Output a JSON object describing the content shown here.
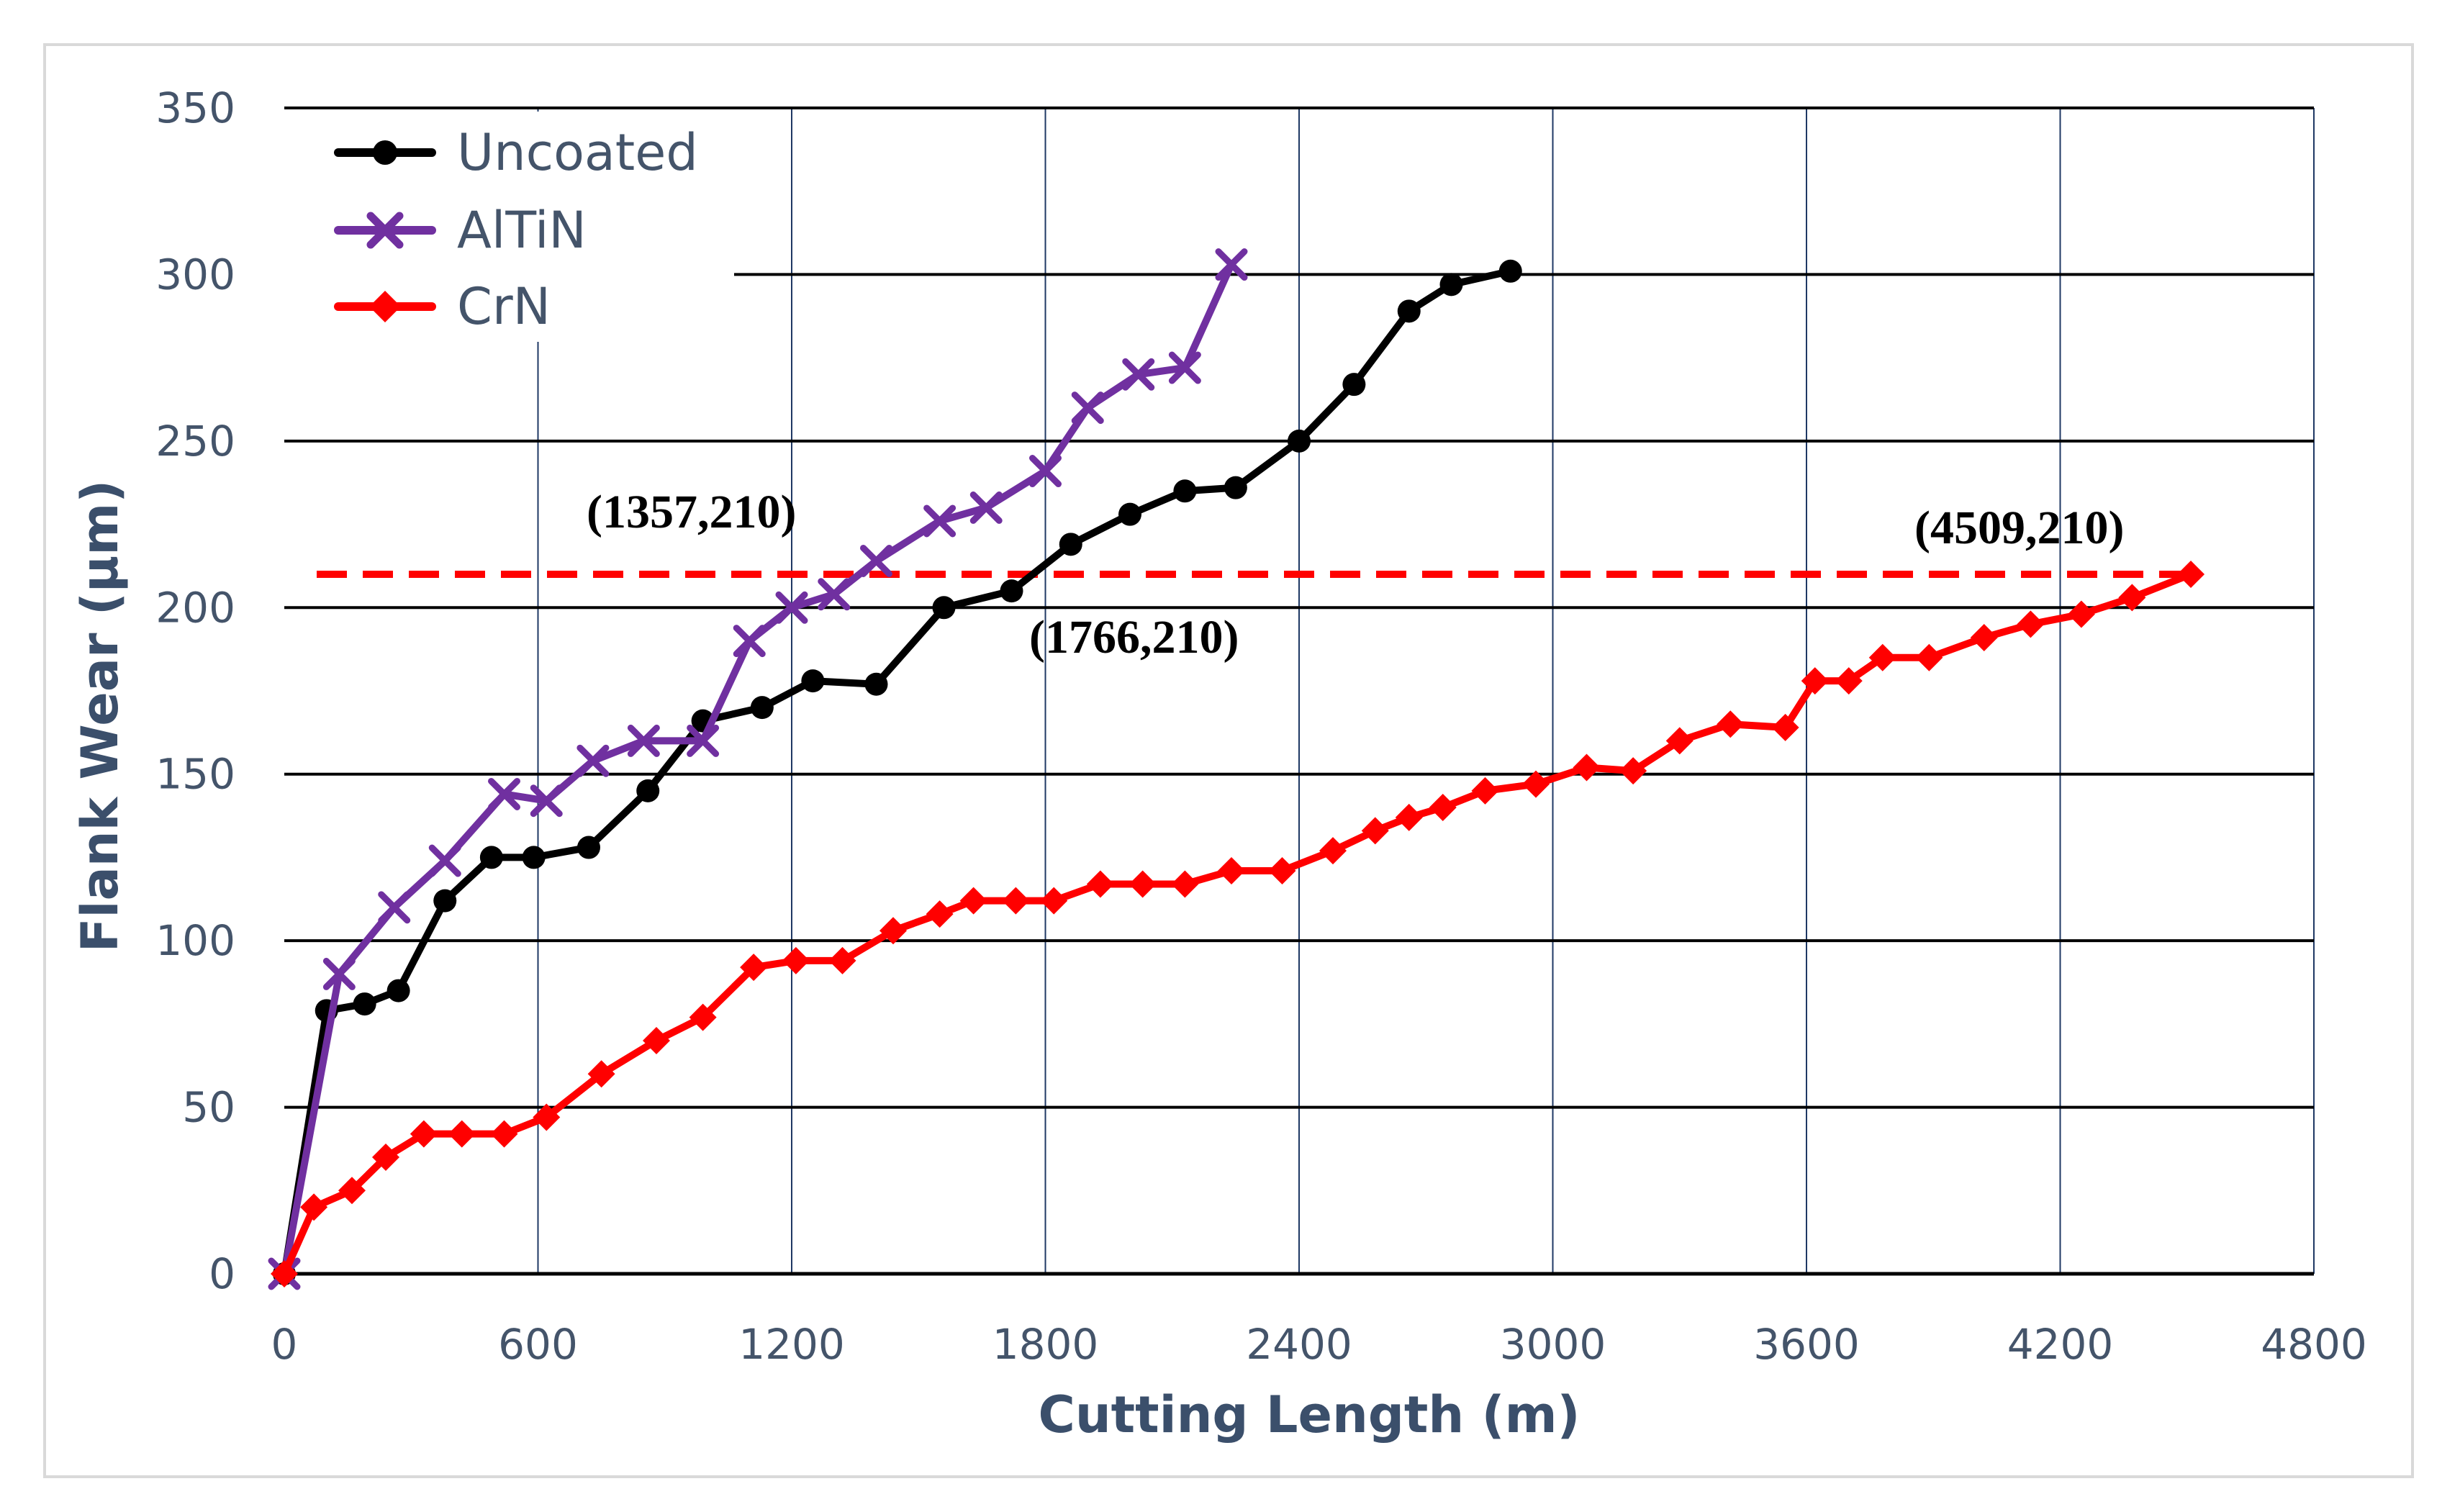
{
  "chart_data": {
    "type": "line",
    "title": "",
    "xlabel": "Cutting Length (m)",
    "ylabel": "Flank Wear (µm)",
    "xlim": [
      0,
      4800
    ],
    "ylim": [
      0,
      350
    ],
    "xticks": [
      0,
      600,
      1200,
      1800,
      2400,
      3000,
      3600,
      4200,
      4800
    ],
    "yticks": [
      0,
      50,
      100,
      150,
      200,
      250,
      300,
      350
    ],
    "grid": "major both",
    "legend_position": "top-left",
    "threshold": {
      "y": 210,
      "color": "#ff0000",
      "style": "dashed"
    },
    "annotations": [
      {
        "text": "(1357,210)",
        "x": 1357,
        "y": 210
      },
      {
        "text": "(1766,210)",
        "x": 1766,
        "y": 210
      },
      {
        "text": "(4509,210)",
        "x": 4509,
        "y": 210
      }
    ],
    "series": [
      {
        "name": "Uncoated",
        "color": "#000000",
        "marker": "circle",
        "x": [
          0,
          100,
          190,
          270,
          380,
          490,
          590,
          720,
          860,
          990,
          1130,
          1250,
          1400,
          1560,
          1720,
          1860,
          2000,
          2130,
          2250,
          2400,
          2530,
          2660,
          2760,
          2900
        ],
        "y": [
          0,
          79,
          81,
          85,
          112,
          125,
          125,
          128,
          145,
          166,
          170,
          178,
          177,
          200,
          205,
          219,
          228,
          235,
          236,
          250,
          267,
          289,
          297,
          301
        ]
      },
      {
        "name": "AlTiN",
        "color": "#7030a0",
        "marker": "x",
        "x": [
          0,
          130,
          260,
          380,
          520,
          620,
          730,
          850,
          990,
          1100,
          1200,
          1300,
          1400,
          1550,
          1660,
          1800,
          1900,
          2020,
          2130,
          2240
        ],
        "y": [
          0,
          90,
          110,
          124,
          144,
          142,
          154,
          160,
          160,
          190,
          200,
          204,
          214,
          226,
          230,
          241,
          260,
          270,
          272,
          303
        ]
      },
      {
        "name": "CrN",
        "color": "#ff0000",
        "marker": "diamond",
        "x": [
          0,
          70,
          160,
          240,
          330,
          420,
          520,
          620,
          750,
          880,
          990,
          1110,
          1210,
          1320,
          1440,
          1550,
          1630,
          1730,
          1820,
          1930,
          2030,
          2130,
          2240,
          2360,
          2480,
          2580,
          2660,
          2740,
          2840,
          2960,
          3080,
          3190,
          3300,
          3420,
          3550,
          3620,
          3700,
          3780,
          3890,
          4020,
          4130,
          4250,
          4370,
          4509
        ],
        "y": [
          0,
          20,
          25,
          35,
          42,
          42,
          42,
          47,
          60,
          70,
          77,
          92,
          94,
          94,
          103,
          108,
          112,
          112,
          112,
          117,
          117,
          117,
          121,
          121,
          127,
          133,
          137,
          140,
          145,
          147,
          152,
          151,
          160,
          165,
          164,
          178,
          178,
          185,
          185,
          191,
          195,
          198,
          203,
          210
        ]
      }
    ]
  }
}
